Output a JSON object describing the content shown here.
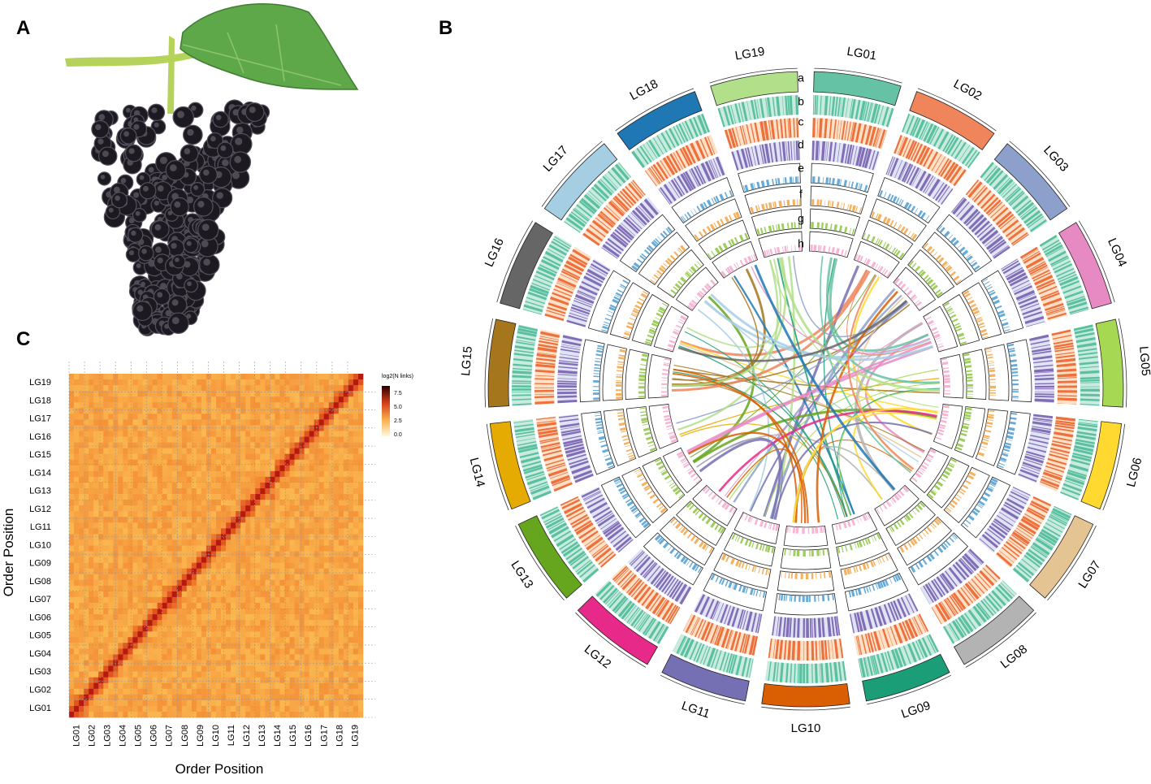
{
  "panels": {
    "a": {
      "label": "A"
    },
    "b": {
      "label": "B",
      "tracks": [
        "a",
        "b",
        "c",
        "d",
        "e",
        "f",
        "g",
        "h"
      ],
      "chromosomes": [
        {
          "label": "LG01",
          "color": "#66c2a5"
        },
        {
          "label": "LG02",
          "color": "#f0845a"
        },
        {
          "label": "LG03",
          "color": "#8da0cb"
        },
        {
          "label": "LG04",
          "color": "#e78ac3"
        },
        {
          "label": "LG05",
          "color": "#a6d854"
        },
        {
          "label": "LG06",
          "color": "#ffd92f"
        },
        {
          "label": "LG07",
          "color": "#e5c494"
        },
        {
          "label": "LG08",
          "color": "#b3b3b3"
        },
        {
          "label": "LG09",
          "color": "#1b9e77"
        },
        {
          "label": "LG10",
          "color": "#d95f02"
        },
        {
          "label": "LG11",
          "color": "#7570b3"
        },
        {
          "label": "LG12",
          "color": "#e7298a"
        },
        {
          "label": "LG13",
          "color": "#66a61e"
        },
        {
          "label": "LG14",
          "color": "#e6ab02"
        },
        {
          "label": "LG15",
          "color": "#a6761d"
        },
        {
          "label": "LG16",
          "color": "#666666"
        },
        {
          "label": "LG17",
          "color": "#a6cee3"
        },
        {
          "label": "LG18",
          "color": "#1f78b4"
        },
        {
          "label": "LG19",
          "color": "#b2df8a"
        }
      ]
    },
    "c": {
      "label": "C",
      "x_label": "Order Position",
      "y_label": "Order Position",
      "legend": {
        "title": "log2(N links)",
        "ticks": [
          "7.5",
          "5.0",
          "2.5",
          "0.0"
        ]
      },
      "groups": [
        "LG01",
        "LG02",
        "LG03",
        "LG04",
        "LG05",
        "LG06",
        "LG07",
        "LG08",
        "LG09",
        "LG10",
        "LG11",
        "LG12",
        "LG13",
        "LG14",
        "LG15",
        "LG16",
        "LG17",
        "LG18",
        "LG19"
      ]
    }
  }
}
